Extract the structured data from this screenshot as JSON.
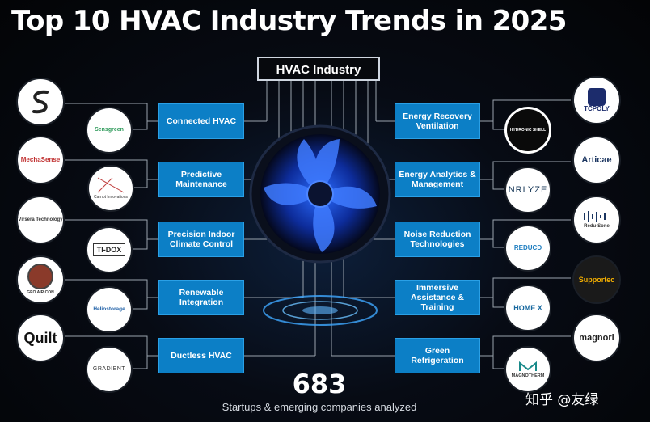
{
  "title": "Top 10 HVAC Industry Trends in 2025",
  "hub": "HVAC Industry",
  "left_trends": [
    "Connected HVAC",
    "Predictive Maintenance",
    "Precision Indoor Climate Control",
    "Renewable Integration",
    "Ductless HVAC"
  ],
  "right_trends": [
    "Energy Recovery Ventilation",
    "Energy Analytics & Management",
    "Noise Reduction Technologies",
    "Immersive Assistance & Training",
    "Green Refrigeration"
  ],
  "left_outer": [
    "",
    "MechaSense",
    "Virsera Technology",
    "GEO AIR CON",
    "Quilt"
  ],
  "left_inner": [
    "Sensgreen",
    "Carnot Innovations",
    "TI-DOX",
    "Heliostorage",
    "GRADIENT"
  ],
  "right_inner": [
    "HYDRONIC SHELL",
    "NRLYZE",
    "REDUCD",
    "HOME X",
    "MAGNOTHERM"
  ],
  "right_outer": [
    "TCPOLY",
    "Articae",
    "Redu-Sone",
    "Supportec",
    "magnori"
  ],
  "count": "683",
  "caption": "Startups & emerging companies analyzed",
  "credit": "知乎 @友绿",
  "colors": {
    "accent": "#0c7fc6",
    "background": "#050608"
  }
}
